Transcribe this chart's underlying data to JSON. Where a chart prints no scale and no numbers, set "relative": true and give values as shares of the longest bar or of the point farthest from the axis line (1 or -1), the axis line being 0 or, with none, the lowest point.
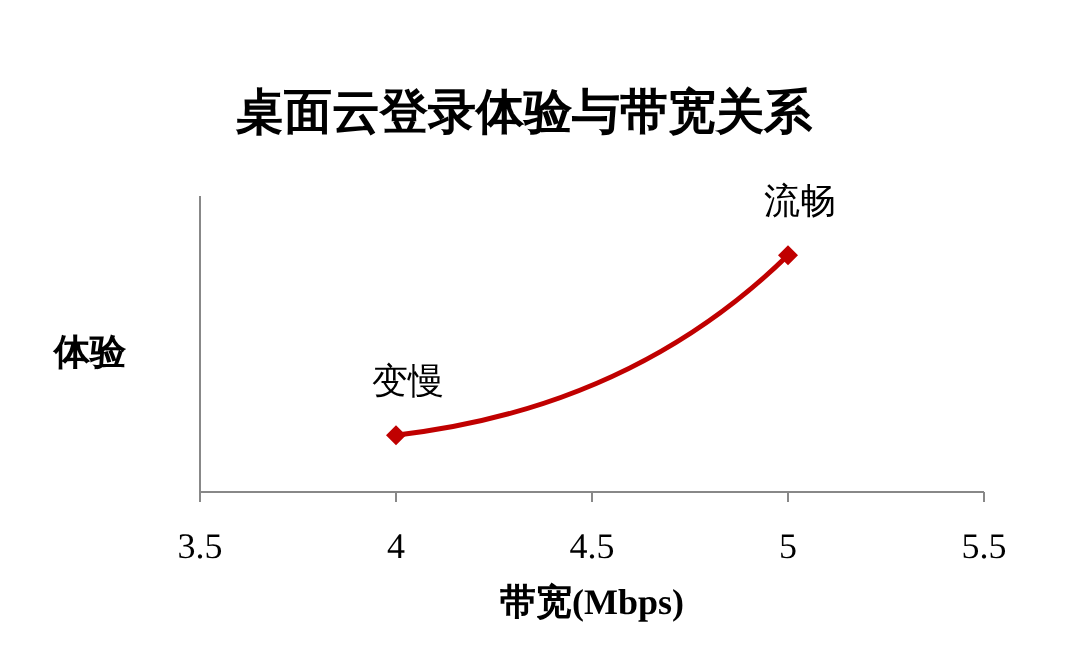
{
  "chart_data": {
    "type": "line",
    "title": "桌面云登录体验与带宽关系",
    "xlabel": "带宽(Mbps)",
    "ylabel": "体验",
    "relative": true,
    "series": [
      {
        "color": "#c00000",
        "x": [
          4,
          5
        ],
        "values": [
          0.24,
          1
        ]
      }
    ],
    "xlim": [
      3.5,
      5.5
    ],
    "xticks": [
      3.5,
      4,
      4.5,
      5,
      5.5
    ],
    "marker": "diamond",
    "line_style": "solid",
    "grid": false,
    "annotations": [
      {
        "text": "变慢",
        "x": 4,
        "y": 0.24
      },
      {
        "text": "流畅",
        "x": 5,
        "y": 1
      }
    ]
  }
}
